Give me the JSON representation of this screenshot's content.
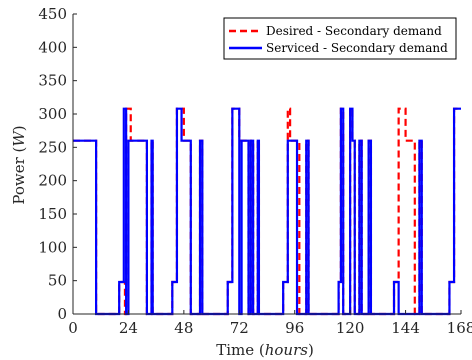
{
  "chart_data": {
    "type": "line",
    "xlabel": "Time",
    "xlabel_unit": "hours",
    "ylabel": "Power",
    "ylabel_unit": "W",
    "xlim": [
      0,
      168
    ],
    "ylim": [
      0,
      450
    ],
    "xticks": [
      0,
      24,
      48,
      72,
      96,
      120,
      144,
      168
    ],
    "yticks": [
      0,
      50,
      100,
      150,
      200,
      250,
      300,
      350,
      400,
      450
    ],
    "grid": false,
    "legend_position": "top-right",
    "series": [
      {
        "name": "Desired - Secondary demand",
        "color": "#ff0000",
        "style": "dashed",
        "points": [
          [
            0,
            260
          ],
          [
            10,
            260
          ],
          [
            10,
            0
          ],
          [
            20,
            0
          ],
          [
            20,
            48
          ],
          [
            22.5,
            48
          ],
          [
            22.5,
            0
          ],
          [
            23,
            0
          ],
          [
            23,
            308
          ],
          [
            25,
            308
          ],
          [
            25,
            260
          ],
          [
            32,
            260
          ],
          [
            32,
            0
          ],
          [
            34,
            0
          ],
          [
            34,
            260
          ],
          [
            34.5,
            260
          ],
          [
            34.5,
            0
          ],
          [
            43,
            0
          ],
          [
            43,
            48
          ],
          [
            45,
            48
          ],
          [
            45,
            308
          ],
          [
            48,
            308
          ],
          [
            48,
            260
          ],
          [
            51,
            260
          ],
          [
            51,
            0
          ],
          [
            55,
            0
          ],
          [
            55,
            260
          ],
          [
            56,
            260
          ],
          [
            56,
            0
          ],
          [
            67,
            0
          ],
          [
            67,
            48
          ],
          [
            69,
            48
          ],
          [
            69,
            308
          ],
          [
            72,
            308
          ],
          [
            72,
            260
          ],
          [
            76,
            260
          ],
          [
            76,
            0
          ],
          [
            77,
            0
          ],
          [
            77,
            260
          ],
          [
            78,
            260
          ],
          [
            78,
            0
          ],
          [
            80,
            0
          ],
          [
            80,
            260
          ],
          [
            80.5,
            260
          ],
          [
            80.5,
            0
          ],
          [
            91,
            0
          ],
          [
            91,
            48
          ],
          [
            93,
            48
          ],
          [
            93,
            308
          ],
          [
            94,
            308
          ],
          [
            94,
            260
          ],
          [
            98,
            260
          ],
          [
            98,
            0
          ],
          [
            101,
            0
          ],
          [
            101,
            260
          ],
          [
            102,
            260
          ],
          [
            102,
            0
          ],
          [
            115,
            0
          ],
          [
            115,
            48
          ],
          [
            116,
            48
          ],
          [
            116,
            308
          ],
          [
            117,
            308
          ],
          [
            117,
            0
          ],
          [
            120,
            0
          ],
          [
            120,
            308
          ],
          [
            121,
            308
          ],
          [
            121,
            260
          ],
          [
            122,
            260
          ],
          [
            122,
            0
          ],
          [
            124,
            0
          ],
          [
            124,
            260
          ],
          [
            125,
            260
          ],
          [
            125,
            0
          ],
          [
            128,
            0
          ],
          [
            128,
            260
          ],
          [
            129,
            260
          ],
          [
            129,
            0
          ],
          [
            139,
            0
          ],
          [
            139,
            48
          ],
          [
            141,
            48
          ],
          [
            141,
            308
          ],
          [
            144,
            308
          ],
          [
            144,
            260
          ],
          [
            148,
            260
          ],
          [
            148,
            0
          ],
          [
            150,
            0
          ],
          [
            150,
            260
          ],
          [
            151,
            260
          ],
          [
            151,
            0
          ],
          [
            163,
            0
          ],
          [
            163,
            48
          ],
          [
            165,
            48
          ],
          [
            165,
            308
          ],
          [
            168,
            308
          ]
        ]
      },
      {
        "name": "Serviced - Secondary demand",
        "color": "#0000ff",
        "style": "solid",
        "points": [
          [
            0,
            260
          ],
          [
            10,
            260
          ],
          [
            10,
            0
          ],
          [
            20,
            0
          ],
          [
            20,
            48
          ],
          [
            22,
            48
          ],
          [
            22,
            308
          ],
          [
            23,
            308
          ],
          [
            23,
            0
          ],
          [
            24,
            0
          ],
          [
            24,
            260
          ],
          [
            32,
            260
          ],
          [
            32,
            0
          ],
          [
            34,
            0
          ],
          [
            34,
            260
          ],
          [
            34.5,
            260
          ],
          [
            34.5,
            0
          ],
          [
            43,
            0
          ],
          [
            43,
            48
          ],
          [
            45,
            48
          ],
          [
            45,
            308
          ],
          [
            47,
            308
          ],
          [
            47,
            260
          ],
          [
            51,
            260
          ],
          [
            51,
            0
          ],
          [
            55,
            0
          ],
          [
            55,
            260
          ],
          [
            56,
            260
          ],
          [
            56,
            0
          ],
          [
            67,
            0
          ],
          [
            67,
            48
          ],
          [
            69,
            48
          ],
          [
            69,
            308
          ],
          [
            72,
            308
          ],
          [
            72,
            0
          ],
          [
            73,
            0
          ],
          [
            73,
            260
          ],
          [
            76,
            260
          ],
          [
            76,
            0
          ],
          [
            77,
            0
          ],
          [
            77,
            260
          ],
          [
            78,
            260
          ],
          [
            78,
            0
          ],
          [
            80,
            0
          ],
          [
            80,
            260
          ],
          [
            80.5,
            260
          ],
          [
            80.5,
            0
          ],
          [
            91,
            0
          ],
          [
            91,
            48
          ],
          [
            93,
            48
          ],
          [
            93,
            260
          ],
          [
            97,
            260
          ],
          [
            97,
            0
          ],
          [
            101,
            0
          ],
          [
            101,
            260
          ],
          [
            102,
            260
          ],
          [
            102,
            0
          ],
          [
            115,
            0
          ],
          [
            115,
            48
          ],
          [
            116,
            48
          ],
          [
            116,
            308
          ],
          [
            117,
            308
          ],
          [
            117,
            0
          ],
          [
            120,
            0
          ],
          [
            120,
            308
          ],
          [
            121,
            308
          ],
          [
            121,
            260
          ],
          [
            122,
            260
          ],
          [
            122,
            0
          ],
          [
            124,
            0
          ],
          [
            124,
            260
          ],
          [
            125,
            260
          ],
          [
            125,
            0
          ],
          [
            128,
            0
          ],
          [
            128,
            260
          ],
          [
            129,
            260
          ],
          [
            129,
            0
          ],
          [
            139,
            0
          ],
          [
            139,
            48
          ],
          [
            141,
            48
          ],
          [
            141,
            0
          ],
          [
            150,
            0
          ],
          [
            150,
            260
          ],
          [
            151,
            260
          ],
          [
            151,
            0
          ],
          [
            163,
            0
          ],
          [
            163,
            48
          ],
          [
            165,
            48
          ],
          [
            165,
            308
          ],
          [
            168,
            308
          ]
        ]
      }
    ]
  }
}
